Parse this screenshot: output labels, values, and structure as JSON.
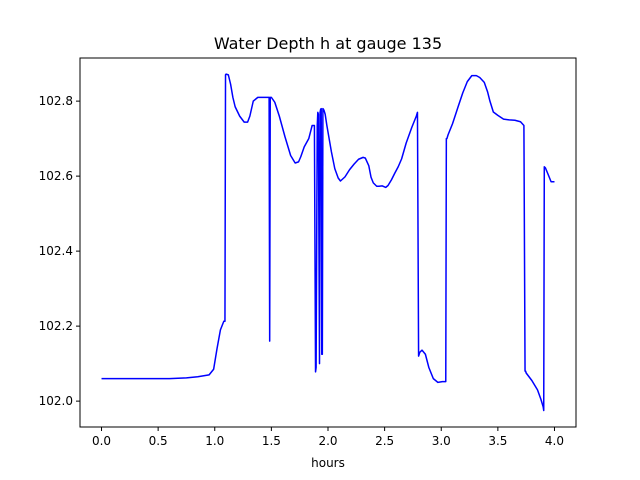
{
  "chart_data": {
    "type": "line",
    "title": "Water Depth h at gauge 135",
    "xlabel": "hours",
    "ylabel": "",
    "xlim": [
      -0.19,
      4.19
    ],
    "ylim": [
      101.931,
      102.915
    ],
    "xticks": [
      0.0,
      0.5,
      1.0,
      1.5,
      2.0,
      2.5,
      3.0,
      3.5,
      4.0
    ],
    "xtick_labels": [
      "0.0",
      "0.5",
      "1.0",
      "1.5",
      "2.0",
      "2.5",
      "3.0",
      "3.5",
      "4.0"
    ],
    "yticks": [
      102.0,
      102.2,
      102.4,
      102.6,
      102.8
    ],
    "ytick_labels": [
      "102.0",
      "102.2",
      "102.4",
      "102.6",
      "102.8"
    ],
    "grid": false,
    "legend": "none",
    "series": [
      {
        "color": "#0000ff",
        "x": [
          0.0,
          0.2,
          0.4,
          0.6,
          0.75,
          0.85,
          0.95,
          0.99,
          1.02,
          1.05,
          1.08,
          1.09,
          1.095,
          1.1,
          1.12,
          1.14,
          1.16,
          1.18,
          1.22,
          1.26,
          1.29,
          1.31,
          1.34,
          1.38,
          1.42,
          1.47,
          1.48,
          1.485,
          1.49,
          1.5,
          1.53,
          1.57,
          1.62,
          1.67,
          1.71,
          1.74,
          1.76,
          1.79,
          1.83,
          1.86,
          1.88,
          1.89,
          1.895,
          1.905,
          1.91,
          1.915,
          1.925,
          1.93,
          1.935,
          1.94,
          1.945,
          1.95,
          1.955,
          1.96,
          1.965,
          1.975,
          1.99,
          2.01,
          2.03,
          2.06,
          2.09,
          2.11,
          2.15,
          2.19,
          2.23,
          2.27,
          2.31,
          2.33,
          2.36,
          2.38,
          2.4,
          2.43,
          2.45,
          2.48,
          2.51,
          2.53,
          2.56,
          2.59,
          2.62,
          2.65,
          2.69,
          2.74,
          2.78,
          2.79,
          2.8,
          2.81,
          2.83,
          2.86,
          2.89,
          2.93,
          2.97,
          3.01,
          3.04,
          3.045,
          3.05,
          3.06,
          3.1,
          3.15,
          3.19,
          3.23,
          3.27,
          3.31,
          3.34,
          3.38,
          3.41,
          3.43,
          3.46,
          3.5,
          3.55,
          3.6,
          3.65,
          3.7,
          3.73,
          3.74,
          3.745,
          3.75,
          3.8,
          3.85,
          3.88,
          3.9,
          3.905,
          3.91,
          3.92,
          3.95,
          3.97,
          4.0
        ],
        "y": [
          102.06,
          102.06,
          102.06,
          102.06,
          102.062,
          102.065,
          102.07,
          102.085,
          102.14,
          102.19,
          102.213,
          102.213,
          102.87,
          102.872,
          102.87,
          102.845,
          102.81,
          102.785,
          102.76,
          102.744,
          102.744,
          102.76,
          102.8,
          102.81,
          102.81,
          102.81,
          102.81,
          102.16,
          102.81,
          102.81,
          102.797,
          102.76,
          102.705,
          102.655,
          102.635,
          102.638,
          102.652,
          102.678,
          102.7,
          102.735,
          102.735,
          102.078,
          102.09,
          102.735,
          102.77,
          102.765,
          102.1,
          102.77,
          102.778,
          102.78,
          102.125,
          102.125,
          102.78,
          102.778,
          102.775,
          102.765,
          102.735,
          102.7,
          102.665,
          102.62,
          102.595,
          102.587,
          102.598,
          102.617,
          102.632,
          102.645,
          102.65,
          102.648,
          102.628,
          102.597,
          102.582,
          102.573,
          102.573,
          102.574,
          102.57,
          102.575,
          102.59,
          102.608,
          102.625,
          102.646,
          102.688,
          102.73,
          102.76,
          102.77,
          102.12,
          102.13,
          102.136,
          102.125,
          102.09,
          102.06,
          102.05,
          102.052,
          102.052,
          102.7,
          102.7,
          102.71,
          102.74,
          102.786,
          102.822,
          102.852,
          102.868,
          102.868,
          102.863,
          102.85,
          102.824,
          102.8,
          102.771,
          102.762,
          102.752,
          102.75,
          102.749,
          102.745,
          102.735,
          102.08,
          102.08,
          102.075,
          102.055,
          102.03,
          102.005,
          101.985,
          101.975,
          102.625,
          102.622,
          102.6,
          102.585,
          102.585
        ]
      }
    ]
  }
}
